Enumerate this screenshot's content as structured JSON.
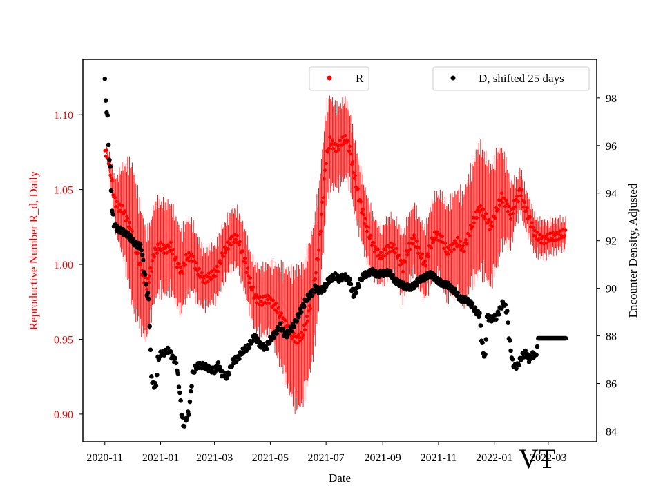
{
  "chart_data": {
    "type": "scatter",
    "xlabel": "Date",
    "x_tick_labels": [
      "2020-11",
      "2021-01",
      "2021-03",
      "2021-05",
      "2021-07",
      "2021-09",
      "2021-11",
      "2022-01",
      "2022-03"
    ],
    "x_tick_days": [
      0,
      61,
      120,
      181,
      242,
      304,
      365,
      426,
      485
    ],
    "x_range_days": [
      -24,
      538
    ],
    "y_left": {
      "label": "Reproductive Number R_d, Daily",
      "color": "#ff0000",
      "range": [
        0.8815,
        1.137
      ],
      "ticks": [
        0.9,
        0.95,
        1.0,
        1.05,
        1.1
      ],
      "tick_labels": [
        "0.90",
        "0.95",
        "1.00",
        "1.05",
        "1.10"
      ]
    },
    "y_right": {
      "label": "Encounter Density, Adjusted",
      "color": "#000000",
      "range": [
        83.55,
        99.62
      ],
      "ticks": [
        84,
        86,
        88,
        90,
        92,
        94,
        96,
        98
      ],
      "tick_labels": [
        "84",
        "86",
        "88",
        "90",
        "92",
        "94",
        "96",
        "98"
      ]
    },
    "series": [
      {
        "name": "R",
        "axis": "left",
        "color": "#ff0000",
        "marker": "dot-with-errorbars",
        "keyframes_day_value": [
          [
            0,
            1.076
          ],
          [
            3,
            1.072
          ],
          [
            6,
            1.062
          ],
          [
            10,
            1.045
          ],
          [
            14,
            1.038
          ],
          [
            20,
            1.036
          ],
          [
            26,
            1.028
          ],
          [
            32,
            1.015
          ],
          [
            38,
            1.0
          ],
          [
            42,
            0.992
          ],
          [
            46,
            0.985
          ],
          [
            50,
            0.995
          ],
          [
            54,
            1.008
          ],
          [
            60,
            1.012
          ],
          [
            66,
            1.01
          ],
          [
            72,
            1.012
          ],
          [
            78,
            1.002
          ],
          [
            84,
            0.995
          ],
          [
            90,
            1.005
          ],
          [
            96,
            1.005
          ],
          [
            102,
            0.995
          ],
          [
            108,
            0.99
          ],
          [
            116,
            0.992
          ],
          [
            122,
            0.995
          ],
          [
            128,
            1.005
          ],
          [
            134,
            1.012
          ],
          [
            140,
            1.018
          ],
          [
            146,
            1.016
          ],
          [
            152,
            1.005
          ],
          [
            158,
            0.99
          ],
          [
            164,
            0.978
          ],
          [
            172,
            0.975
          ],
          [
            180,
            0.977
          ],
          [
            186,
            0.972
          ],
          [
            192,
            0.966
          ],
          [
            198,
            0.96
          ],
          [
            204,
            0.953
          ],
          [
            210,
            0.95
          ],
          [
            216,
            0.952
          ],
          [
            222,
            0.965
          ],
          [
            228,
            0.982
          ],
          [
            234,
            1.01
          ],
          [
            238,
            1.04
          ],
          [
            242,
            1.07
          ],
          [
            246,
            1.082
          ],
          [
            250,
            1.08
          ],
          [
            254,
            1.078
          ],
          [
            260,
            1.082
          ],
          [
            264,
            1.084
          ],
          [
            268,
            1.077
          ],
          [
            272,
            1.062
          ],
          [
            278,
            1.045
          ],
          [
            284,
            1.03
          ],
          [
            290,
            1.018
          ],
          [
            296,
            1.01
          ],
          [
            302,
            1.005
          ],
          [
            308,
            1.01
          ],
          [
            314,
            1.012
          ],
          [
            320,
            1.007
          ],
          [
            326,
            0.998
          ],
          [
            332,
            1.01
          ],
          [
            338,
            1.018
          ],
          [
            344,
            1.008
          ],
          [
            350,
            1.0
          ],
          [
            356,
            1.012
          ],
          [
            362,
            1.02
          ],
          [
            368,
            1.018
          ],
          [
            374,
            1.008
          ],
          [
            380,
            1.012
          ],
          [
            386,
            1.015
          ],
          [
            392,
            1.01
          ],
          [
            398,
            1.02
          ],
          [
            404,
            1.03
          ],
          [
            410,
            1.038
          ],
          [
            416,
            1.032
          ],
          [
            422,
            1.025
          ],
          [
            428,
            1.035
          ],
          [
            434,
            1.045
          ],
          [
            440,
            1.04
          ],
          [
            444,
            1.032
          ],
          [
            448,
            1.04
          ],
          [
            452,
            1.045
          ],
          [
            454,
            1.05
          ],
          [
            456,
            1.047
          ],
          [
            458,
            1.04
          ],
          [
            462,
            1.035
          ],
          [
            466,
            1.028
          ],
          [
            470,
            1.02
          ],
          [
            476,
            1.017
          ],
          [
            484,
            1.017
          ],
          [
            492,
            1.019
          ],
          [
            500,
            1.02
          ],
          [
            504,
            1.02
          ]
        ],
        "errorbar_halfwidth_keyframes": [
          [
            0,
            0.0
          ],
          [
            10,
            0.015
          ],
          [
            30,
            0.05
          ],
          [
            50,
            0.035
          ],
          [
            80,
            0.03
          ],
          [
            110,
            0.02
          ],
          [
            140,
            0.02
          ],
          [
            180,
            0.025
          ],
          [
            210,
            0.05
          ],
          [
            230,
            0.045
          ],
          [
            250,
            0.03
          ],
          [
            300,
            0.02
          ],
          [
            350,
            0.025
          ],
          [
            410,
            0.045
          ],
          [
            430,
            0.04
          ],
          [
            450,
            0.015
          ],
          [
            504,
            0.01
          ]
        ]
      },
      {
        "name": "D, shifted 25 days",
        "axis": "right",
        "color": "#000000",
        "marker": "dot",
        "keyframes_day_value": [
          [
            0,
            98.8
          ],
          [
            1,
            97.8
          ],
          [
            2,
            97.5
          ],
          [
            3,
            97.2
          ],
          [
            4,
            96.0
          ],
          [
            6,
            95.0
          ],
          [
            8,
            93.3
          ],
          [
            10,
            92.7
          ],
          [
            14,
            92.5
          ],
          [
            18,
            92.4
          ],
          [
            24,
            92.3
          ],
          [
            30,
            92.0
          ],
          [
            36,
            91.8
          ],
          [
            40,
            91.7
          ],
          [
            44,
            90.5
          ],
          [
            46,
            89.8
          ],
          [
            48,
            89.6
          ],
          [
            50,
            87.3
          ],
          [
            51,
            86.4
          ],
          [
            52,
            86.0
          ],
          [
            56,
            85.9
          ],
          [
            58,
            87.0
          ],
          [
            62,
            87.3
          ],
          [
            66,
            87.3
          ],
          [
            70,
            87.4
          ],
          [
            74,
            87.1
          ],
          [
            78,
            86.9
          ],
          [
            80,
            86.3
          ],
          [
            82,
            85.6
          ],
          [
            84,
            84.8
          ],
          [
            86,
            84.2
          ],
          [
            88,
            84.4
          ],
          [
            92,
            84.8
          ],
          [
            96,
            86.4
          ],
          [
            100,
            86.7
          ],
          [
            104,
            86.8
          ],
          [
            110,
            86.7
          ],
          [
            116,
            86.6
          ],
          [
            120,
            86.5
          ],
          [
            124,
            86.8
          ],
          [
            128,
            86.4
          ],
          [
            134,
            86.3
          ],
          [
            140,
            86.9
          ],
          [
            146,
            87.1
          ],
          [
            152,
            87.4
          ],
          [
            158,
            87.6
          ],
          [
            164,
            88.0
          ],
          [
            170,
            87.6
          ],
          [
            176,
            87.5
          ],
          [
            182,
            87.9
          ],
          [
            188,
            88.2
          ],
          [
            192,
            88.4
          ],
          [
            198,
            88.0
          ],
          [
            204,
            88.3
          ],
          [
            210,
            88.7
          ],
          [
            216,
            89.2
          ],
          [
            220,
            89.5
          ],
          [
            226,
            89.8
          ],
          [
            230,
            90.0
          ],
          [
            234,
            89.9
          ],
          [
            240,
            90.0
          ],
          [
            246,
            90.4
          ],
          [
            252,
            90.5
          ],
          [
            256,
            90.4
          ],
          [
            262,
            90.5
          ],
          [
            268,
            90.3
          ],
          [
            272,
            89.7
          ],
          [
            276,
            90.0
          ],
          [
            280,
            90.4
          ],
          [
            286,
            90.6
          ],
          [
            292,
            90.7
          ],
          [
            298,
            90.6
          ],
          [
            304,
            90.6
          ],
          [
            310,
            90.7
          ],
          [
            316,
            90.4
          ],
          [
            322,
            90.2
          ],
          [
            328,
            90.1
          ],
          [
            334,
            90.0
          ],
          [
            340,
            90.2
          ],
          [
            346,
            90.4
          ],
          [
            352,
            90.5
          ],
          [
            358,
            90.6
          ],
          [
            364,
            90.3
          ],
          [
            370,
            90.2
          ],
          [
            376,
            90.1
          ],
          [
            382,
            89.9
          ],
          [
            388,
            89.6
          ],
          [
            394,
            89.5
          ],
          [
            400,
            89.4
          ],
          [
            406,
            89.0
          ],
          [
            410,
            88.9
          ],
          [
            412,
            87.9
          ],
          [
            414,
            87.3
          ],
          [
            416,
            87.1
          ],
          [
            418,
            88.8
          ],
          [
            424,
            88.7
          ],
          [
            428,
            88.8
          ],
          [
            432,
            89.1
          ],
          [
            436,
            89.4
          ],
          [
            438,
            89.2
          ],
          [
            440,
            89.0
          ],
          [
            442,
            88.0
          ],
          [
            444,
            87.4
          ],
          [
            446,
            86.9
          ],
          [
            448,
            86.7
          ],
          [
            452,
            86.8
          ],
          [
            456,
            87.1
          ],
          [
            460,
            87.3
          ],
          [
            464,
            87.0
          ],
          [
            468,
            87.2
          ],
          [
            472,
            87.2
          ],
          [
            474,
            87.9
          ],
          [
            504,
            87.9
          ]
        ]
      }
    ],
    "legend": [
      {
        "label": "R",
        "color": "#ff0000",
        "placement": "top-center"
      },
      {
        "label": "D, shifted 25 days",
        "color": "#000000",
        "placement": "top-right"
      }
    ],
    "watermark": "VT"
  }
}
